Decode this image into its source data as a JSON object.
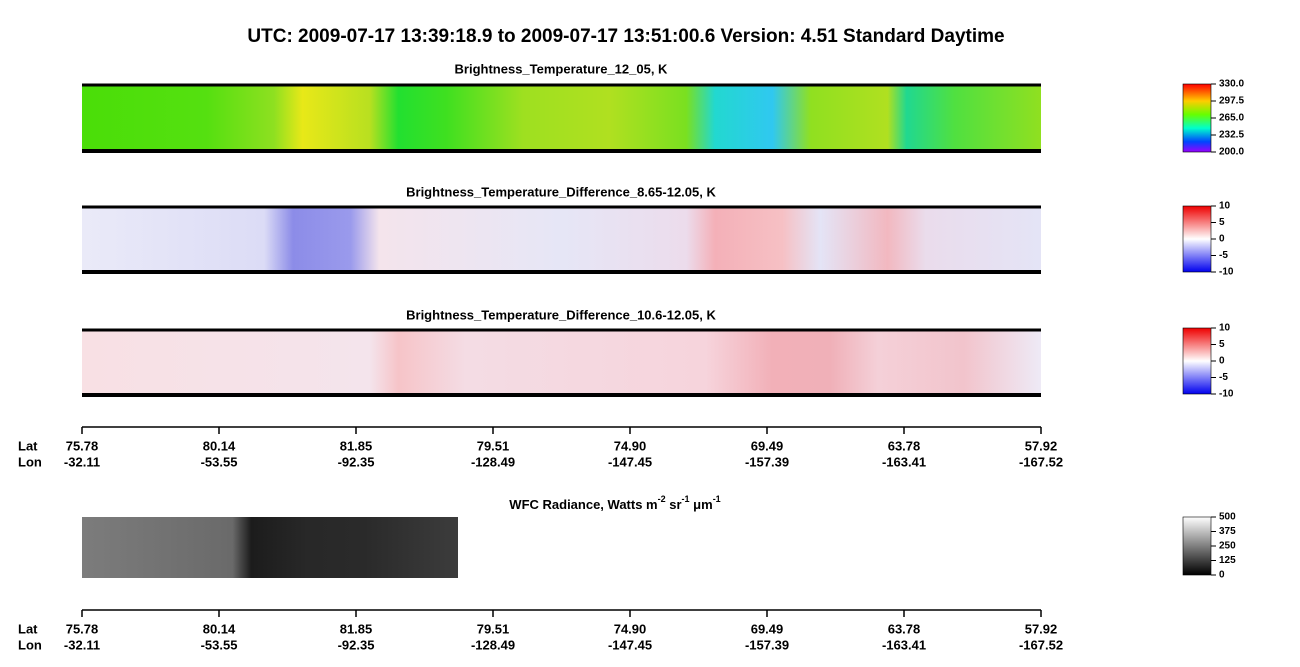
{
  "title": "UTC:  2009-07-17   13:39:18.9  to  2009-07-17   13:51:00.6    Version: 4.51  Standard Daytime",
  "panels": [
    {
      "title": "Brightness_Temperature_12_05, K",
      "colorbar": [
        "330.0",
        "297.5",
        "265.0",
        "232.5",
        "200.0"
      ]
    },
    {
      "title": "Brightness_Temperature_Difference_8.65-12.05, K",
      "colorbar": [
        "10",
        "5",
        "0",
        "-5",
        "-10"
      ]
    },
    {
      "title": "Brightness_Temperature_Difference_10.6-12.05, K",
      "colorbar": [
        "10",
        "5",
        "0",
        "-5",
        "-10"
      ]
    }
  ],
  "wfc": {
    "title_parts": [
      "WFC Radiance, Watts m",
      "-2",
      " sr",
      "-1",
      " μm",
      "-1"
    ],
    "colorbar": [
      "500",
      "375",
      "250",
      "125",
      "0"
    ]
  },
  "axis": {
    "lat_label": "Lat",
    "lon_label": "Lon",
    "lat": [
      "75.78",
      "80.14",
      "81.85",
      "79.51",
      "74.90",
      "69.49",
      "63.78",
      "57.92"
    ],
    "lon": [
      "-32.11",
      "-53.55",
      "-92.35",
      "-128.49",
      "-147.45",
      "-157.39",
      "-163.41",
      "-167.52"
    ]
  }
}
